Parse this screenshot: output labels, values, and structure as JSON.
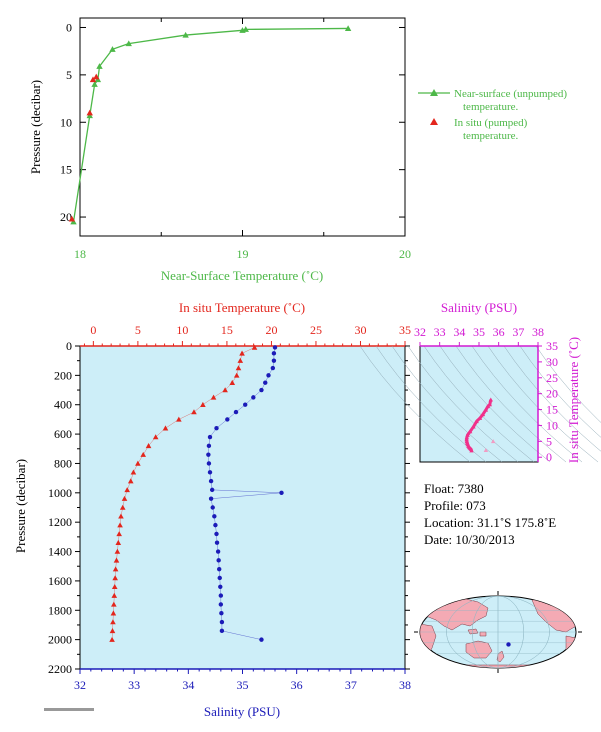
{
  "chart_data": [
    {
      "id": "near_surface",
      "type": "line",
      "xlabel": "Near-Surface Temperature (˚C)",
      "ylabel": "Pressure (decibar)",
      "xlim": [
        18,
        20
      ],
      "ylim": [
        22,
        -1
      ],
      "xticks": [
        18,
        19,
        20
      ],
      "xtick_labels": [
        "18",
        "19",
        "20"
      ],
      "xminor": [
        18.5,
        19.5
      ],
      "yticks": [
        0,
        5,
        10,
        15,
        20
      ],
      "series": [
        {
          "name": "Near-surface (unpumped) temperature.",
          "marker": "triangle",
          "connected": true,
          "x": [
            19.65,
            19.02,
            19.0,
            18.65,
            18.3,
            18.2,
            18.12,
            18.11,
            18.09,
            18.06,
            17.96
          ],
          "y": [
            0.1,
            0.2,
            0.3,
            0.8,
            1.7,
            2.3,
            4.1,
            5.5,
            6.0,
            9.3,
            20.5
          ]
        },
        {
          "name": "In situ (pumped) temperature.",
          "marker": "triangle",
          "connected": false,
          "x": [
            18.1,
            18.08,
            18.06,
            17.95
          ],
          "y": [
            5.2,
            5.5,
            9.0,
            20.2
          ]
        }
      ]
    },
    {
      "id": "profile",
      "type": "line",
      "ylabel": "Pressure (decibar)",
      "ylim": [
        2200,
        0
      ],
      "yticks": [
        0,
        200,
        400,
        600,
        800,
        1000,
        1200,
        1400,
        1600,
        1800,
        2000,
        2200
      ],
      "temperature_axis": {
        "label": "In situ Temperature (˚C)",
        "lim": [
          -1.5,
          35
        ],
        "ticks": [
          0,
          5,
          10,
          15,
          20,
          25,
          30,
          35
        ]
      },
      "salinity_axis": {
        "label": "Salinity (PSU)",
        "lim": [
          32,
          38
        ],
        "ticks": [
          32,
          33,
          34,
          35,
          36,
          37,
          38
        ]
      },
      "series": [
        {
          "name": "In situ Temperature",
          "marker": "triangle",
          "points": [
            [
              18.1,
              10
            ],
            [
              16.7,
              50
            ],
            [
              16.5,
              100
            ],
            [
              16.3,
              150
            ],
            [
              16.1,
              200
            ],
            [
              15.6,
              250
            ],
            [
              14.8,
              300
            ],
            [
              13.5,
              350
            ],
            [
              12.3,
              400
            ],
            [
              11.3,
              450
            ],
            [
              9.6,
              500
            ],
            [
              8.1,
              560
            ],
            [
              7.0,
              620
            ],
            [
              6.2,
              680
            ],
            [
              5.6,
              740
            ],
            [
              5.0,
              800
            ],
            [
              4.5,
              860
            ],
            [
              4.2,
              920
            ],
            [
              3.8,
              980
            ],
            [
              3.5,
              1040
            ],
            [
              3.3,
              1100
            ],
            [
              3.1,
              1160
            ],
            [
              3.0,
              1220
            ],
            [
              2.9,
              1280
            ],
            [
              2.8,
              1340
            ],
            [
              2.7,
              1400
            ],
            [
              2.6,
              1460
            ],
            [
              2.5,
              1520
            ],
            [
              2.45,
              1580
            ],
            [
              2.4,
              1640
            ],
            [
              2.35,
              1700
            ],
            [
              2.3,
              1760
            ],
            [
              2.25,
              1820
            ],
            [
              2.2,
              1880
            ],
            [
              2.15,
              1940
            ],
            [
              2.1,
              2000
            ]
          ]
        },
        {
          "name": "Salinity",
          "marker": "dot",
          "points": [
            [
              35.6,
              10
            ],
            [
              35.58,
              50
            ],
            [
              35.58,
              100
            ],
            [
              35.56,
              150
            ],
            [
              35.48,
              200
            ],
            [
              35.42,
              250
            ],
            [
              35.35,
              300
            ],
            [
              35.2,
              350
            ],
            [
              35.05,
              400
            ],
            [
              34.88,
              450
            ],
            [
              34.72,
              500
            ],
            [
              34.52,
              560
            ],
            [
              34.4,
              620
            ],
            [
              34.38,
              680
            ],
            [
              34.37,
              740
            ],
            [
              34.38,
              800
            ],
            [
              34.4,
              860
            ],
            [
              34.42,
              920
            ],
            [
              34.44,
              980
            ],
            [
              35.72,
              1000
            ],
            [
              34.42,
              1040
            ],
            [
              34.45,
              1100
            ],
            [
              34.48,
              1160
            ],
            [
              34.5,
              1220
            ],
            [
              34.52,
              1280
            ],
            [
              34.53,
              1340
            ],
            [
              34.55,
              1400
            ],
            [
              34.56,
              1460
            ],
            [
              34.57,
              1520
            ],
            [
              34.58,
              1580
            ],
            [
              34.59,
              1640
            ],
            [
              34.6,
              1700
            ],
            [
              34.6,
              1760
            ],
            [
              34.61,
              1820
            ],
            [
              34.62,
              1880
            ],
            [
              34.62,
              1940
            ],
            [
              35.35,
              2000
            ]
          ]
        }
      ]
    },
    {
      "id": "ts_diagram",
      "type": "scatter",
      "xlabel": "Salinity (PSU)",
      "ylabel": "In situ Temperature (˚C)",
      "xlim": [
        32,
        38
      ],
      "ylim": [
        -1.5,
        35
      ],
      "xticks": [
        32,
        33,
        34,
        35,
        36,
        37,
        38
      ],
      "yticks": [
        0,
        5,
        10,
        15,
        20,
        25,
        30,
        35
      ],
      "points": [
        [
          35.6,
          18.1
        ],
        [
          35.55,
          16.6
        ],
        [
          35.45,
          16.0
        ],
        [
          35.35,
          14.9
        ],
        [
          35.2,
          13.5
        ],
        [
          35.05,
          12.3
        ],
        [
          34.88,
          11.3
        ],
        [
          34.72,
          9.6
        ],
        [
          34.55,
          8.1
        ],
        [
          34.42,
          7.0
        ],
        [
          34.38,
          6.2
        ],
        [
          34.37,
          5.6
        ],
        [
          34.38,
          5.0
        ],
        [
          34.4,
          4.5
        ],
        [
          34.43,
          4.0
        ],
        [
          34.46,
          3.5
        ],
        [
          34.5,
          3.1
        ],
        [
          34.55,
          2.8
        ],
        [
          34.6,
          2.5
        ],
        [
          34.62,
          2.1
        ]
      ],
      "outliers": [
        [
          35.72,
          5.0
        ],
        [
          35.35,
          2.2
        ]
      ]
    }
  ],
  "info": {
    "float": "Float:  7380",
    "profile": "Profile:  073",
    "location": "Location:  31.1˚S  175.8˚E",
    "date": "Date:  10/30/2013"
  },
  "map": {
    "marker_lon": 175.8,
    "marker_lat": -31.1
  },
  "colors": {
    "green": "#4db848",
    "red": "#e3261d",
    "blue": "#1b1bb8",
    "magenta": "#d21ad2",
    "pink": "#f0308a",
    "plot_bg": "#cdeef8",
    "text": "#000000"
  }
}
